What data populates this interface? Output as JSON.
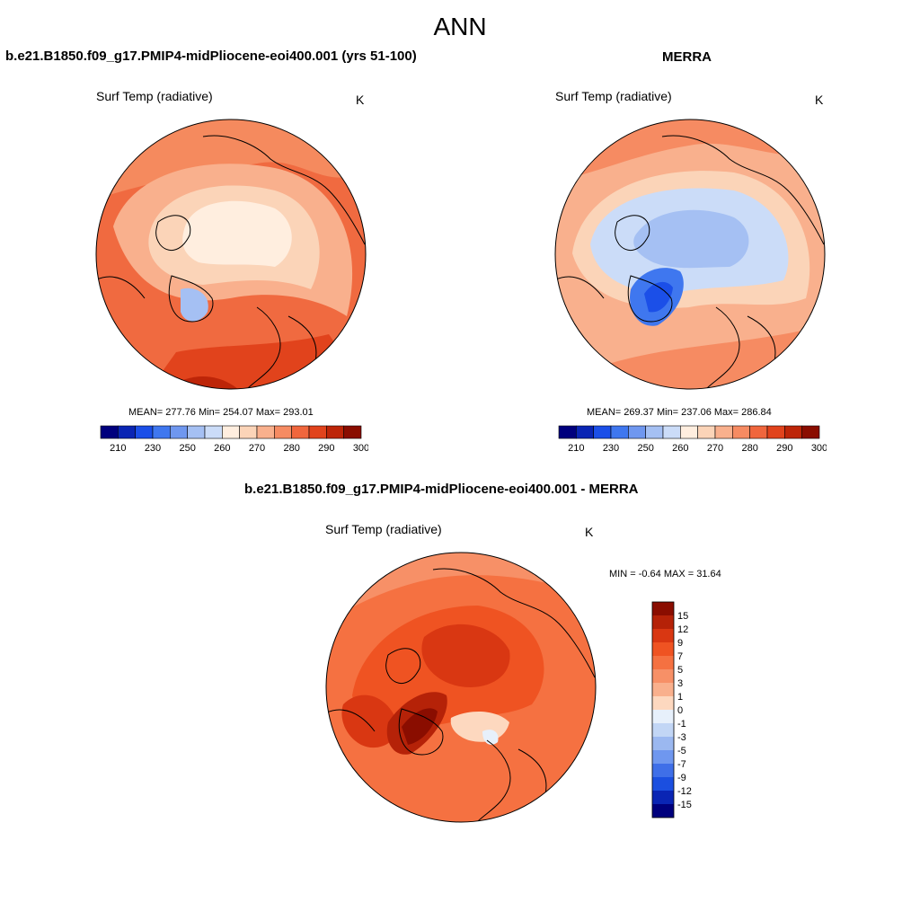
{
  "main_title": "ANN",
  "panels": [
    {
      "title": "b.e21.B1850.f09_g17.PMIP4-midPliocene-eoi400.001 (yrs 51-100)",
      "variable": "Surf Temp (radiative)",
      "units": "K",
      "stats": "MEAN= 277.76  Min= 254.07  Max= 293.01"
    },
    {
      "title": "MERRA",
      "variable": "Surf Temp (radiative)",
      "units": "K",
      "stats": "MEAN= 269.37  Min= 237.06  Max= 286.84"
    },
    {
      "title": "b.e21.B1850.f09_g17.PMIP4-midPliocene-eoi400.001 - MERRA",
      "variable": "Surf Temp (radiative)",
      "units": "K",
      "stats": "MIN =  -0.64 MAX =  31.64"
    }
  ],
  "chart_data": [
    {
      "type": "heatmap",
      "projection": "north-polar-stereographic",
      "title": "b.e21.B1850.f09_g17.PMIP4-midPliocene-eoi400.001 (yrs 51-100)",
      "variable": "Surf Temp (radiative)",
      "units": "K",
      "mean": 277.76,
      "min": 254.07,
      "max": 293.01,
      "colorbar": {
        "orientation": "horizontal",
        "tick_labels": [
          "210",
          "230",
          "250",
          "260",
          "270",
          "280",
          "290",
          "300"
        ],
        "colors": [
          "#00007d",
          "#0a25b4",
          "#1b4fe8",
          "#3f77ef",
          "#6f97ef",
          "#a5c0f3",
          "#cbdcf8",
          "#ffeedf",
          "#fbd4b8",
          "#f9b08d",
          "#f68b62",
          "#f0663d",
          "#e1431c",
          "#bd2508",
          "#8a0d00"
        ]
      }
    },
    {
      "type": "heatmap",
      "projection": "north-polar-stereographic",
      "title": "MERRA",
      "variable": "Surf Temp (radiative)",
      "units": "K",
      "mean": 269.37,
      "min": 237.06,
      "max": 286.84,
      "colorbar": {
        "orientation": "horizontal",
        "tick_labels": [
          "210",
          "230",
          "250",
          "260",
          "270",
          "280",
          "290",
          "300"
        ],
        "colors": [
          "#00007d",
          "#0a25b4",
          "#1b4fe8",
          "#3f77ef",
          "#6f97ef",
          "#a5c0f3",
          "#cbdcf8",
          "#ffeedf",
          "#fbd4b8",
          "#f9b08d",
          "#f68b62",
          "#f0663d",
          "#e1431c",
          "#bd2508",
          "#8a0d00"
        ]
      }
    },
    {
      "type": "heatmap",
      "projection": "north-polar-stereographic",
      "title": "b.e21.B1850.f09_g17.PMIP4-midPliocene-eoi400.001 - MERRA",
      "variable": "Surf Temp (radiative)",
      "units": "K",
      "min": -0.64,
      "max": 31.64,
      "colorbar": {
        "orientation": "vertical",
        "tick_labels": [
          "15",
          "12",
          "9",
          "7",
          "5",
          "3",
          "1",
          "0",
          "-1",
          "-3",
          "-5",
          "-7",
          "-9",
          "-12",
          "-15"
        ],
        "colors": [
          "#8a0d00",
          "#b52208",
          "#d93712",
          "#ef5322",
          "#f57141",
          "#f79067",
          "#f9b08d",
          "#fdd8bf",
          "#e7f0fb",
          "#c2d6f5",
          "#9bb8f0",
          "#6f97ef",
          "#3f6fe8",
          "#1b4fe0",
          "#0a25b4",
          "#00007d"
        ]
      }
    }
  ]
}
